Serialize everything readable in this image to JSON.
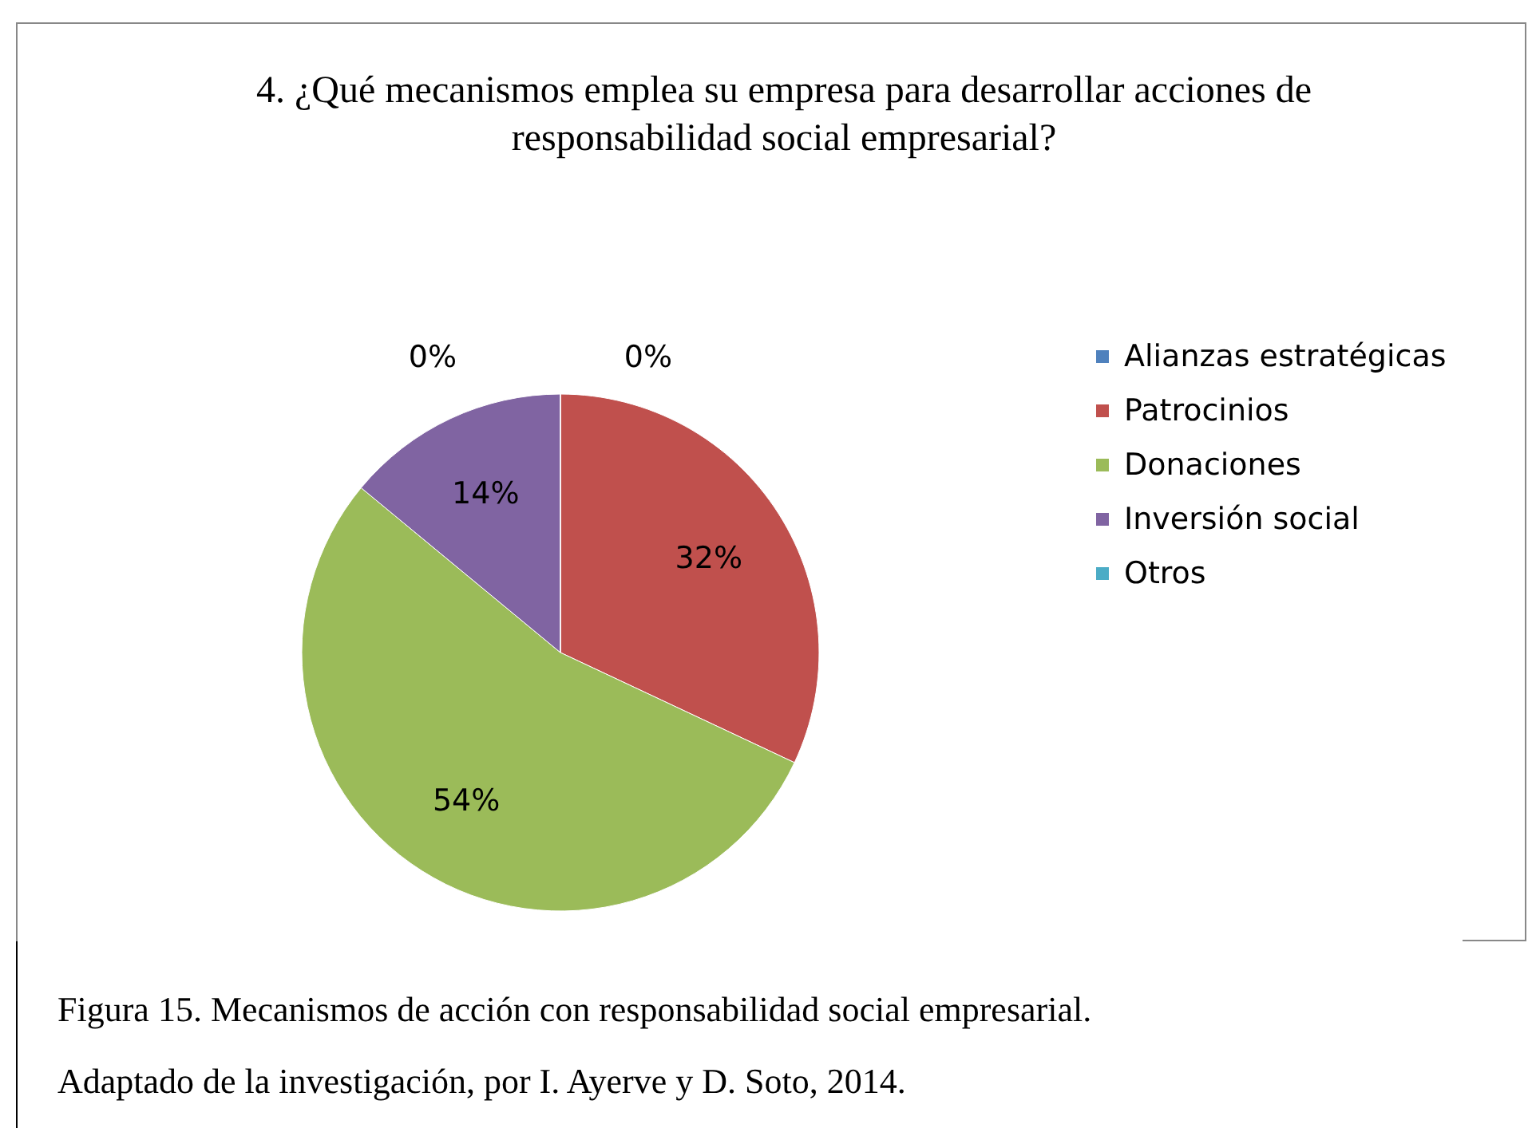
{
  "chart_data": {
    "type": "pie",
    "title": "4. ¿Qué mecanismos emplea su empresa para desarrollar acciones de responsabilidad social empresarial?",
    "categories": [
      "Alianzas estratégicas",
      "Patrocinios",
      "Donaciones",
      "Inversión social",
      "Otros"
    ],
    "values": [
      0,
      32,
      54,
      14,
      0
    ],
    "colors": [
      "#4f81bd",
      "#c0504d",
      "#9bbb59",
      "#8064a2",
      "#4bacc6"
    ],
    "value_labels": [
      "0%",
      "32%",
      "54%",
      "14%",
      "0%"
    ],
    "legend": "right",
    "annotations": [
      "Figura 15. Mecanismos de acción con responsabilidad social empresarial.",
      "Adaptado de la investigación, por I. Ayerve y D. Soto, 2014."
    ]
  }
}
